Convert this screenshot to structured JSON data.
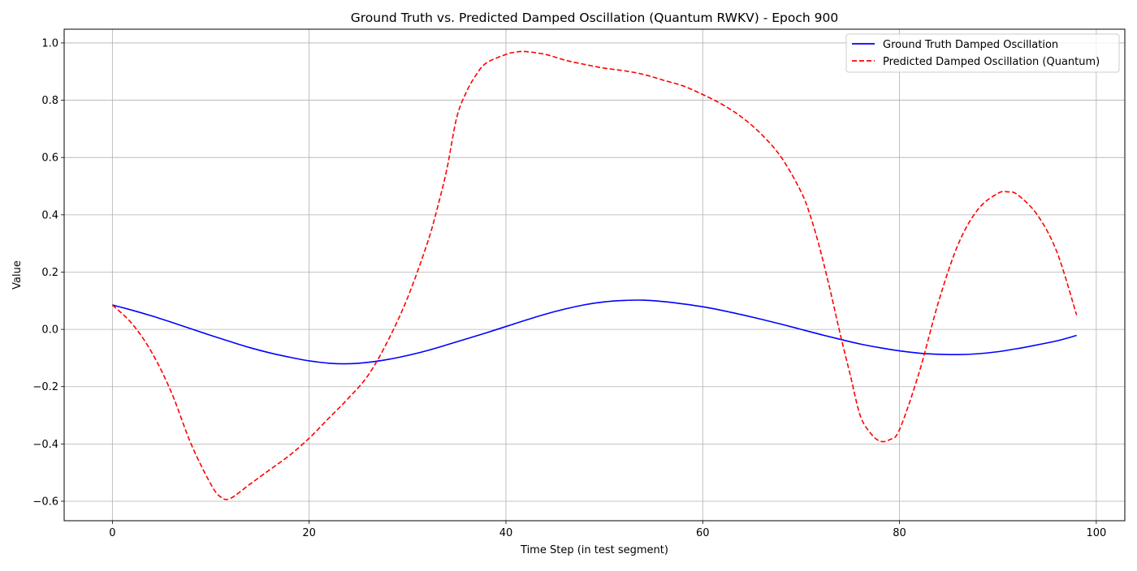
{
  "chart_data": {
    "type": "line",
    "title": "Ground Truth vs. Predicted Damped Oscillation (Quantum RWKV) - Epoch 900",
    "xlabel": "Time Step (in test segment)",
    "ylabel": "Value",
    "xlim": [
      -4.9,
      102.9
    ],
    "ylim": [
      -0.668,
      1.048
    ],
    "xticks": [
      0,
      20,
      40,
      60,
      80,
      100
    ],
    "yticks": [
      -0.6,
      -0.4,
      -0.2,
      0.0,
      0.2,
      0.4,
      0.6,
      0.8,
      1.0
    ],
    "xtick_labels": [
      "0",
      "20",
      "40",
      "60",
      "80",
      "100"
    ],
    "ytick_labels": [
      "−0.6",
      "−0.4",
      "−0.2",
      "0.0",
      "0.2",
      "0.4",
      "0.6",
      "0.8",
      "1.0"
    ],
    "grid": true,
    "legend_position": "top-right",
    "series": [
      {
        "name": "Ground Truth Damped Oscillation",
        "color": "#0000ff",
        "line_style": "solid",
        "x": [
          0,
          2,
          4,
          6,
          8,
          10,
          12,
          14,
          16,
          18,
          20,
          22,
          24,
          26,
          28,
          30,
          32,
          34,
          36,
          38,
          40,
          42,
          44,
          46,
          48,
          50,
          52,
          54,
          56,
          58,
          60,
          62,
          64,
          66,
          68,
          70,
          72,
          74,
          76,
          78,
          80,
          82,
          84,
          86,
          88,
          90,
          92,
          94,
          96,
          98
        ],
        "y": [
          0.085,
          0.067,
          0.047,
          0.025,
          0.002,
          -0.021,
          -0.043,
          -0.064,
          -0.082,
          -0.097,
          -0.11,
          -0.118,
          -0.12,
          -0.115,
          -0.105,
          -0.091,
          -0.074,
          -0.054,
          -0.033,
          -0.012,
          0.01,
          0.032,
          0.053,
          0.071,
          0.086,
          0.096,
          0.101,
          0.102,
          0.097,
          0.089,
          0.079,
          0.066,
          0.051,
          0.035,
          0.018,
          0.0,
          -0.018,
          -0.035,
          -0.051,
          -0.064,
          -0.075,
          -0.083,
          -0.087,
          -0.088,
          -0.085,
          -0.078,
          -0.067,
          -0.054,
          -0.04,
          -0.021
        ]
      },
      {
        "name": "Predicted Damped Oscillation (Quantum)",
        "color": "#ff0000",
        "line_style": "dashed",
        "x": [
          0,
          2,
          4,
          6,
          8,
          10,
          11,
          12,
          14,
          16,
          18,
          20,
          22,
          24,
          26,
          28,
          30,
          32,
          33,
          34,
          35,
          36,
          37,
          38,
          40,
          41,
          42,
          44,
          46,
          48,
          50,
          52,
          54,
          56,
          58,
          60,
          62,
          64,
          66,
          68,
          70,
          71,
          72,
          73,
          74,
          75,
          76,
          77,
          78,
          79,
          80,
          82,
          84,
          86,
          88,
          90,
          91,
          92,
          94,
          96,
          98
        ],
        "y": [
          0.085,
          0.02,
          -0.08,
          -0.22,
          -0.4,
          -0.54,
          -0.585,
          -0.59,
          -0.54,
          -0.49,
          -0.44,
          -0.38,
          -0.31,
          -0.24,
          -0.16,
          -0.04,
          0.11,
          0.3,
          0.42,
          0.56,
          0.74,
          0.83,
          0.89,
          0.93,
          0.96,
          0.968,
          0.97,
          0.96,
          0.94,
          0.925,
          0.912,
          0.903,
          0.89,
          0.87,
          0.85,
          0.82,
          0.785,
          0.74,
          0.68,
          0.6,
          0.48,
          0.39,
          0.27,
          0.13,
          -0.02,
          -0.16,
          -0.3,
          -0.36,
          -0.39,
          -0.385,
          -0.35,
          -0.15,
          0.1,
          0.3,
          0.42,
          0.475,
          0.48,
          0.47,
          0.4,
          0.27,
          0.05
        ]
      }
    ]
  }
}
